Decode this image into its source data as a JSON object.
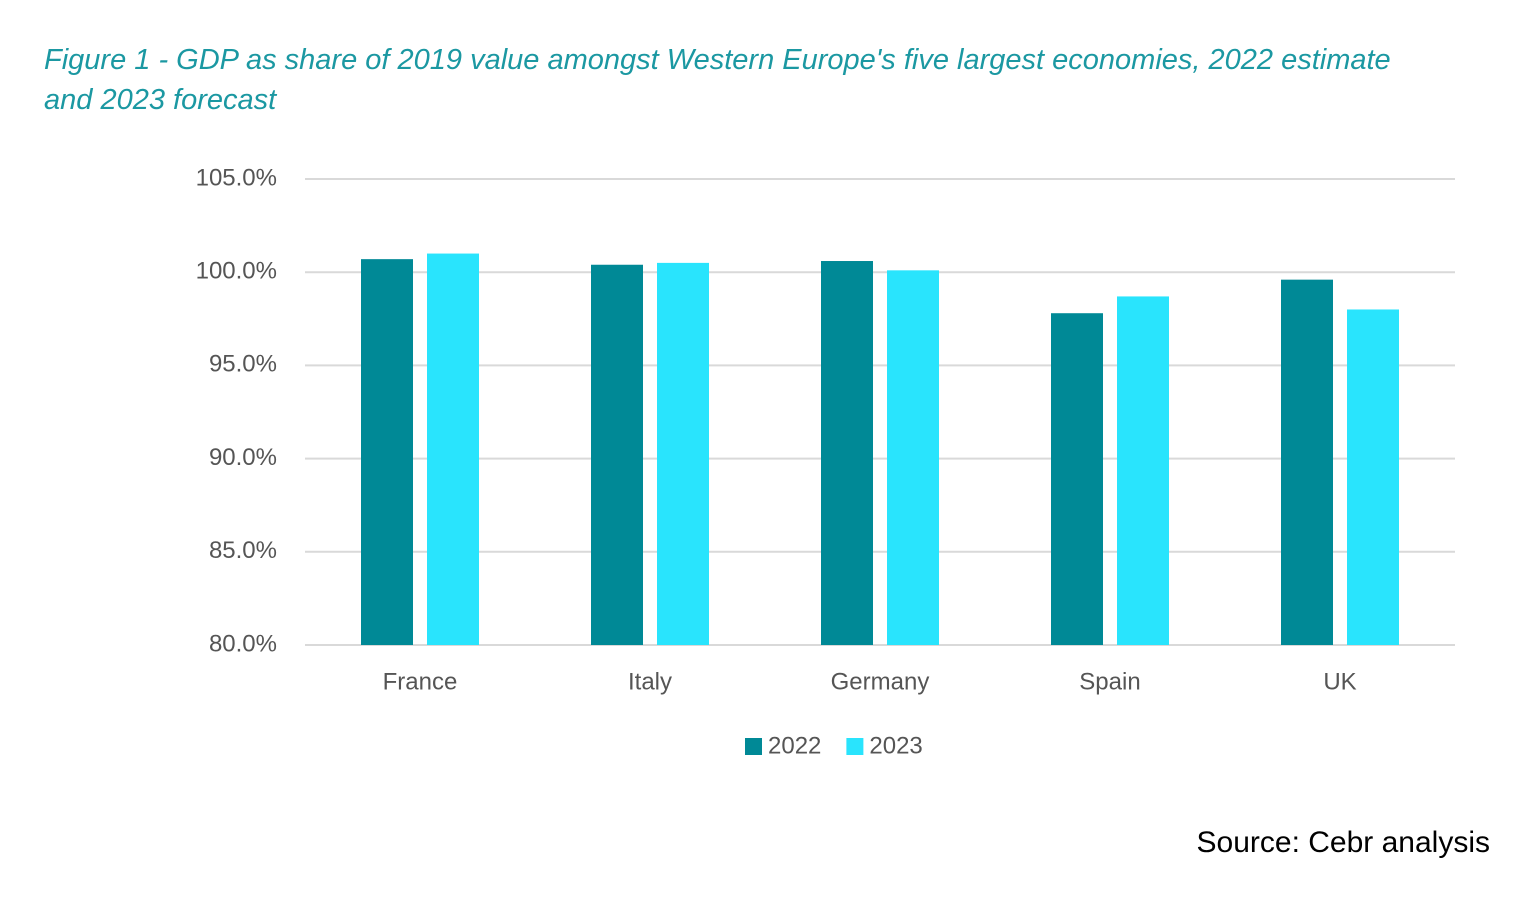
{
  "chart_data": {
    "type": "bar",
    "title": "Figure 1 - GDP as share of 2019 value amongst Western Europe's five largest economies, 2022 estimate and 2023 forecast",
    "source": "Source: Cebr analysis",
    "categories": [
      "France",
      "Italy",
      "Germany",
      "Spain",
      "UK"
    ],
    "series": [
      {
        "name": "2022",
        "color": "#008996",
        "values": [
          100.7,
          100.4,
          100.6,
          97.8,
          99.6
        ]
      },
      {
        "name": "2023",
        "color": "#29e4fd",
        "values": [
          101.0,
          100.5,
          100.1,
          98.7,
          98.0
        ]
      }
    ],
    "ylim": [
      80,
      105
    ],
    "yticks": [
      {
        "value": 80,
        "label": "80.0%"
      },
      {
        "value": 85,
        "label": "85.0%"
      },
      {
        "value": 90,
        "label": "90.0%"
      },
      {
        "value": 95,
        "label": "95.0%"
      },
      {
        "value": 100,
        "label": "100.0%"
      },
      {
        "value": 105,
        "label": "105.0%"
      }
    ],
    "grid": true,
    "legend": "bottom"
  }
}
